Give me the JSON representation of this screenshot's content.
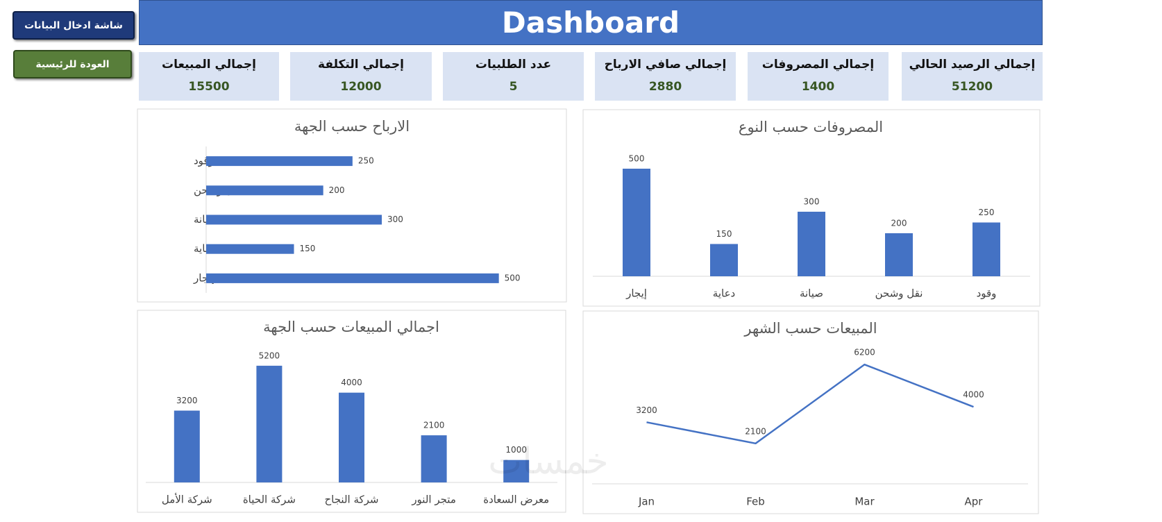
{
  "header": {
    "title": "Dashboard"
  },
  "buttons": [
    "شاشة ادخال البيانات",
    "العودة للرئيسية"
  ],
  "kpis": [
    {
      "label": "إجمالي الرصيد الحالي",
      "value": 51200
    },
    {
      "label": "إجمالي المصروفات",
      "value": 1400
    },
    {
      "label": "إجمالي صافي الارباح",
      "value": 2880
    },
    {
      "label": "عدد الطلبيات",
      "value": 5
    },
    {
      "label": "إجمالي التكلفة",
      "value": 12000
    },
    {
      "label": "إجمالي المبيعات",
      "value": 15500
    }
  ],
  "watermark": "خمسات",
  "chart_data": [
    {
      "type": "hbar",
      "title": "الارباح حسب الجهة",
      "categories": [
        "إيجار",
        "دعاية",
        "صيانة",
        "نقل وشحن",
        "وقود"
      ],
      "values": [
        500,
        150,
        300,
        200,
        250
      ],
      "color": "#4472c4",
      "xlim": [
        0,
        600
      ],
      "data_labels": true
    },
    {
      "type": "bar",
      "title": "المصروفات حسب النوع",
      "categories": [
        "إيجار",
        "دعاية",
        "صيانة",
        "نقل وشحن",
        "وقود"
      ],
      "values": [
        500,
        150,
        300,
        200,
        250
      ],
      "color": "#4472c4",
      "ylim": [
        0,
        600
      ],
      "data_labels": true
    },
    {
      "type": "bar",
      "title": "اجمالي المبيعات حسب الجهة",
      "categories": [
        "شركة الأمل",
        "شركة الحياة",
        "شركة النجاح",
        "متجر النور",
        "معرض السعادة"
      ],
      "values": [
        3200,
        5200,
        4000,
        2100,
        1000
      ],
      "color": "#4472c4",
      "ylim": [
        0,
        6000
      ],
      "data_labels": true
    },
    {
      "type": "line",
      "title": "المبيعات حسب الشهر",
      "categories": [
        "Jan",
        "Feb",
        "Mar",
        "Apr"
      ],
      "values": [
        3200,
        2100,
        6200,
        4000
      ],
      "color": "#4472c4",
      "ylim": [
        0,
        7000
      ],
      "data_labels": true
    }
  ]
}
